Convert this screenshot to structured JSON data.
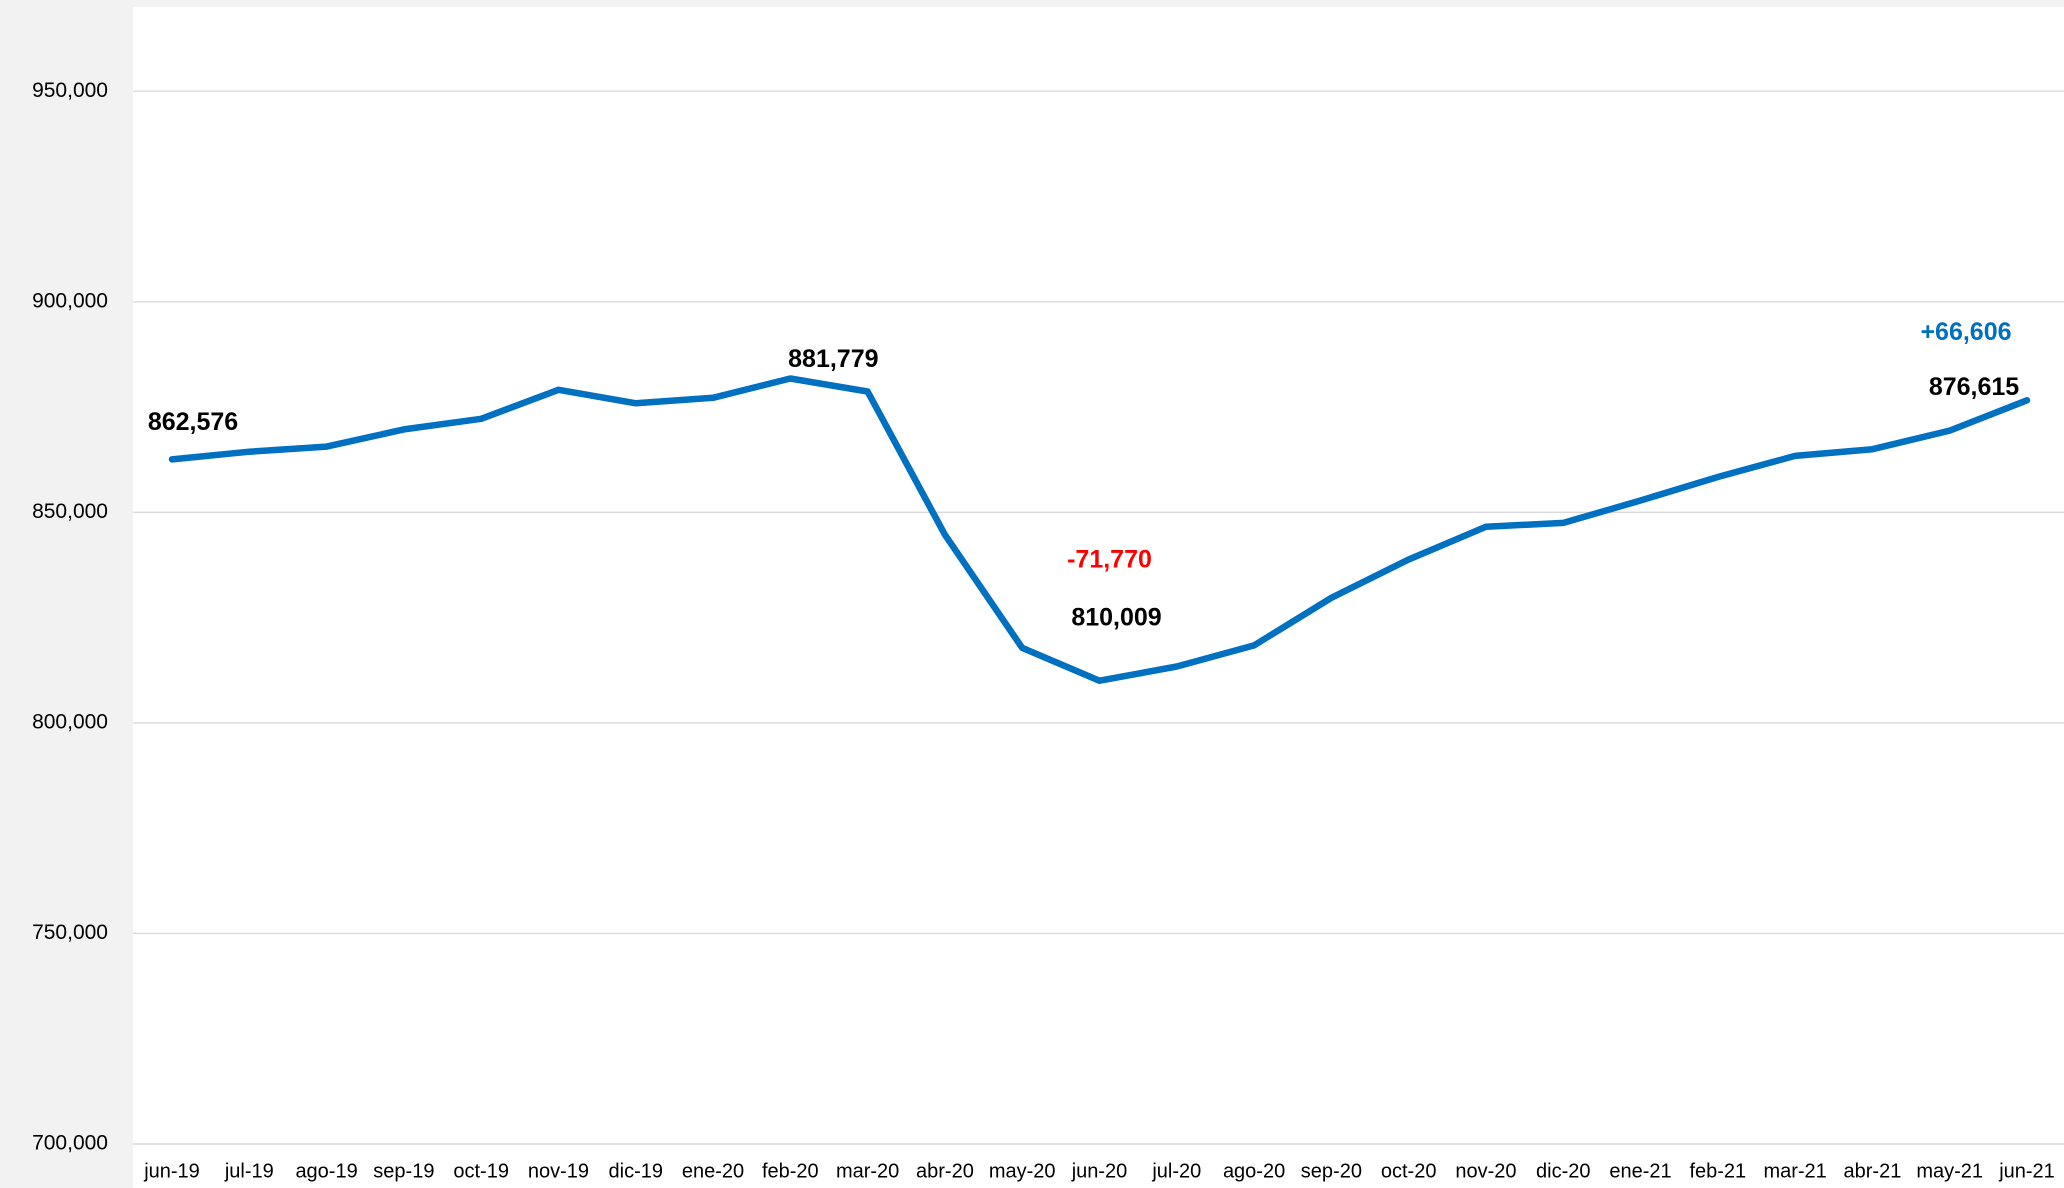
{
  "chart_data": {
    "type": "line",
    "title": "",
    "xlabel": "",
    "ylabel": "",
    "categories": [
      "jun-19",
      "jul-19",
      "ago-19",
      "sep-19",
      "oct-19",
      "nov-19",
      "dic-19",
      "ene-20",
      "feb-20",
      "mar-20",
      "abr-20",
      "may-20",
      "jun-20",
      "jul-20",
      "ago-20",
      "sep-20",
      "oct-20",
      "nov-20",
      "dic-20",
      "ene-21",
      "feb-21",
      "mar-21",
      "abr-21",
      "may-21",
      "jun-21"
    ],
    "series": [
      {
        "values": [
          862576,
          864400,
          865600,
          869700,
          872200,
          879100,
          875900,
          877200,
          881779,
          878700,
          844700,
          817800,
          810009,
          813400,
          818400,
          829700,
          838800,
          846600,
          847500,
          852800,
          858400,
          863400,
          865000,
          869400,
          876615
        ]
      }
    ],
    "ylim": [
      700000,
      970000
    ],
    "yticks": [
      700000,
      750000,
      800000,
      850000,
      900000,
      950000
    ],
    "y_tick_labels": [
      "700,000",
      "750,000",
      "800,000",
      "850,000",
      "900,000",
      "950,000"
    ],
    "grid": true,
    "legend": "none",
    "annotations": [
      {
        "text": "862,576",
        "at": "jun-19",
        "color": "#000000"
      },
      {
        "text": "881,779",
        "at": "feb-20",
        "color": "#000000"
      },
      {
        "text": "-71,770",
        "at": "jun-20",
        "color": "#ff0000"
      },
      {
        "text": "810,009",
        "at": "jun-20",
        "color": "#000000"
      },
      {
        "text": "+66,606",
        "at": "jun-21",
        "color": "#0070c0"
      },
      {
        "text": "876,615",
        "at": "jun-21",
        "color": "#000000"
      }
    ]
  },
  "colors": {
    "series": "#0070c0",
    "gridline": "#d9d9d9",
    "plot_background": "#ffffff",
    "page_background": "#f2f2f2"
  }
}
